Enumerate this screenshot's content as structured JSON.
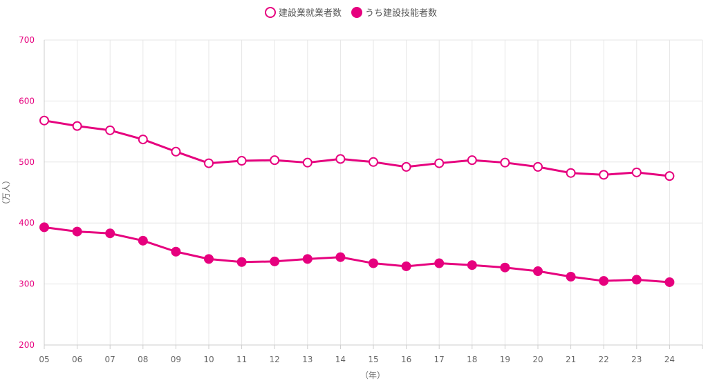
{
  "colors": {
    "series": "#e6007e",
    "grid": "#e6e6e6",
    "axis": "#cccccc",
    "ytick": "#e6007e",
    "xtick": "#666666"
  },
  "chart_data": {
    "type": "line",
    "title": "",
    "xlabel": "（年）",
    "ylabel": "（万人）",
    "ylim": [
      200,
      700
    ],
    "yticks": [
      200,
      300,
      400,
      500,
      600,
      700
    ],
    "grid": true,
    "legend": "top-center",
    "x": [
      "05",
      "06",
      "07",
      "08",
      "09",
      "10",
      "11",
      "12",
      "13",
      "14",
      "15",
      "16",
      "17",
      "18",
      "19",
      "20",
      "21",
      "22",
      "23",
      "24"
    ],
    "series": [
      {
        "name": "建設業就業者数",
        "marker": "hollow-circle",
        "values": [
          568,
          559,
          552,
          537,
          517,
          498,
          502,
          503,
          499,
          505,
          500,
          492,
          498,
          503,
          499,
          492,
          482,
          479,
          483,
          477
        ]
      },
      {
        "name": "うち建設技能者数",
        "marker": "filled-circle",
        "values": [
          393,
          386,
          383,
          371,
          353,
          341,
          336,
          337,
          341,
          344,
          334,
          329,
          334,
          331,
          327,
          321,
          312,
          305,
          307,
          303
        ]
      }
    ]
  }
}
